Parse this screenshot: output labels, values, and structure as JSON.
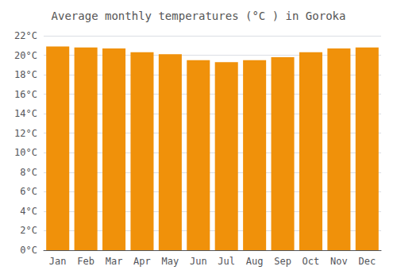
{
  "chart_data": {
    "type": "bar",
    "title": "Average monthly temperatures (°C ) in Goroka",
    "categories": [
      "Jan",
      "Feb",
      "Mar",
      "Apr",
      "May",
      "Jun",
      "Jul",
      "Aug",
      "Sep",
      "Oct",
      "Nov",
      "Dec"
    ],
    "values": [
      20.9,
      20.8,
      20.7,
      20.3,
      20.1,
      19.5,
      19.3,
      19.5,
      19.8,
      20.3,
      20.7,
      20.8
    ],
    "color": "#F0910A",
    "ylim": [
      0,
      22
    ],
    "yticks": [
      {
        "value": 0,
        "label": "0°C"
      },
      {
        "value": 2,
        "label": "2°C"
      },
      {
        "value": 4,
        "label": "4°C"
      },
      {
        "value": 6,
        "label": "6°C"
      },
      {
        "value": 8,
        "label": "8°C"
      },
      {
        "value": 10,
        "label": "10°C"
      },
      {
        "value": 12,
        "label": "12°C"
      },
      {
        "value": 14,
        "label": "14°C"
      },
      {
        "value": 16,
        "label": "16°C"
      },
      {
        "value": 18,
        "label": "18°C"
      },
      {
        "value": 20,
        "label": "20°C"
      },
      {
        "value": 22,
        "label": "22°C"
      }
    ],
    "grid": true
  }
}
